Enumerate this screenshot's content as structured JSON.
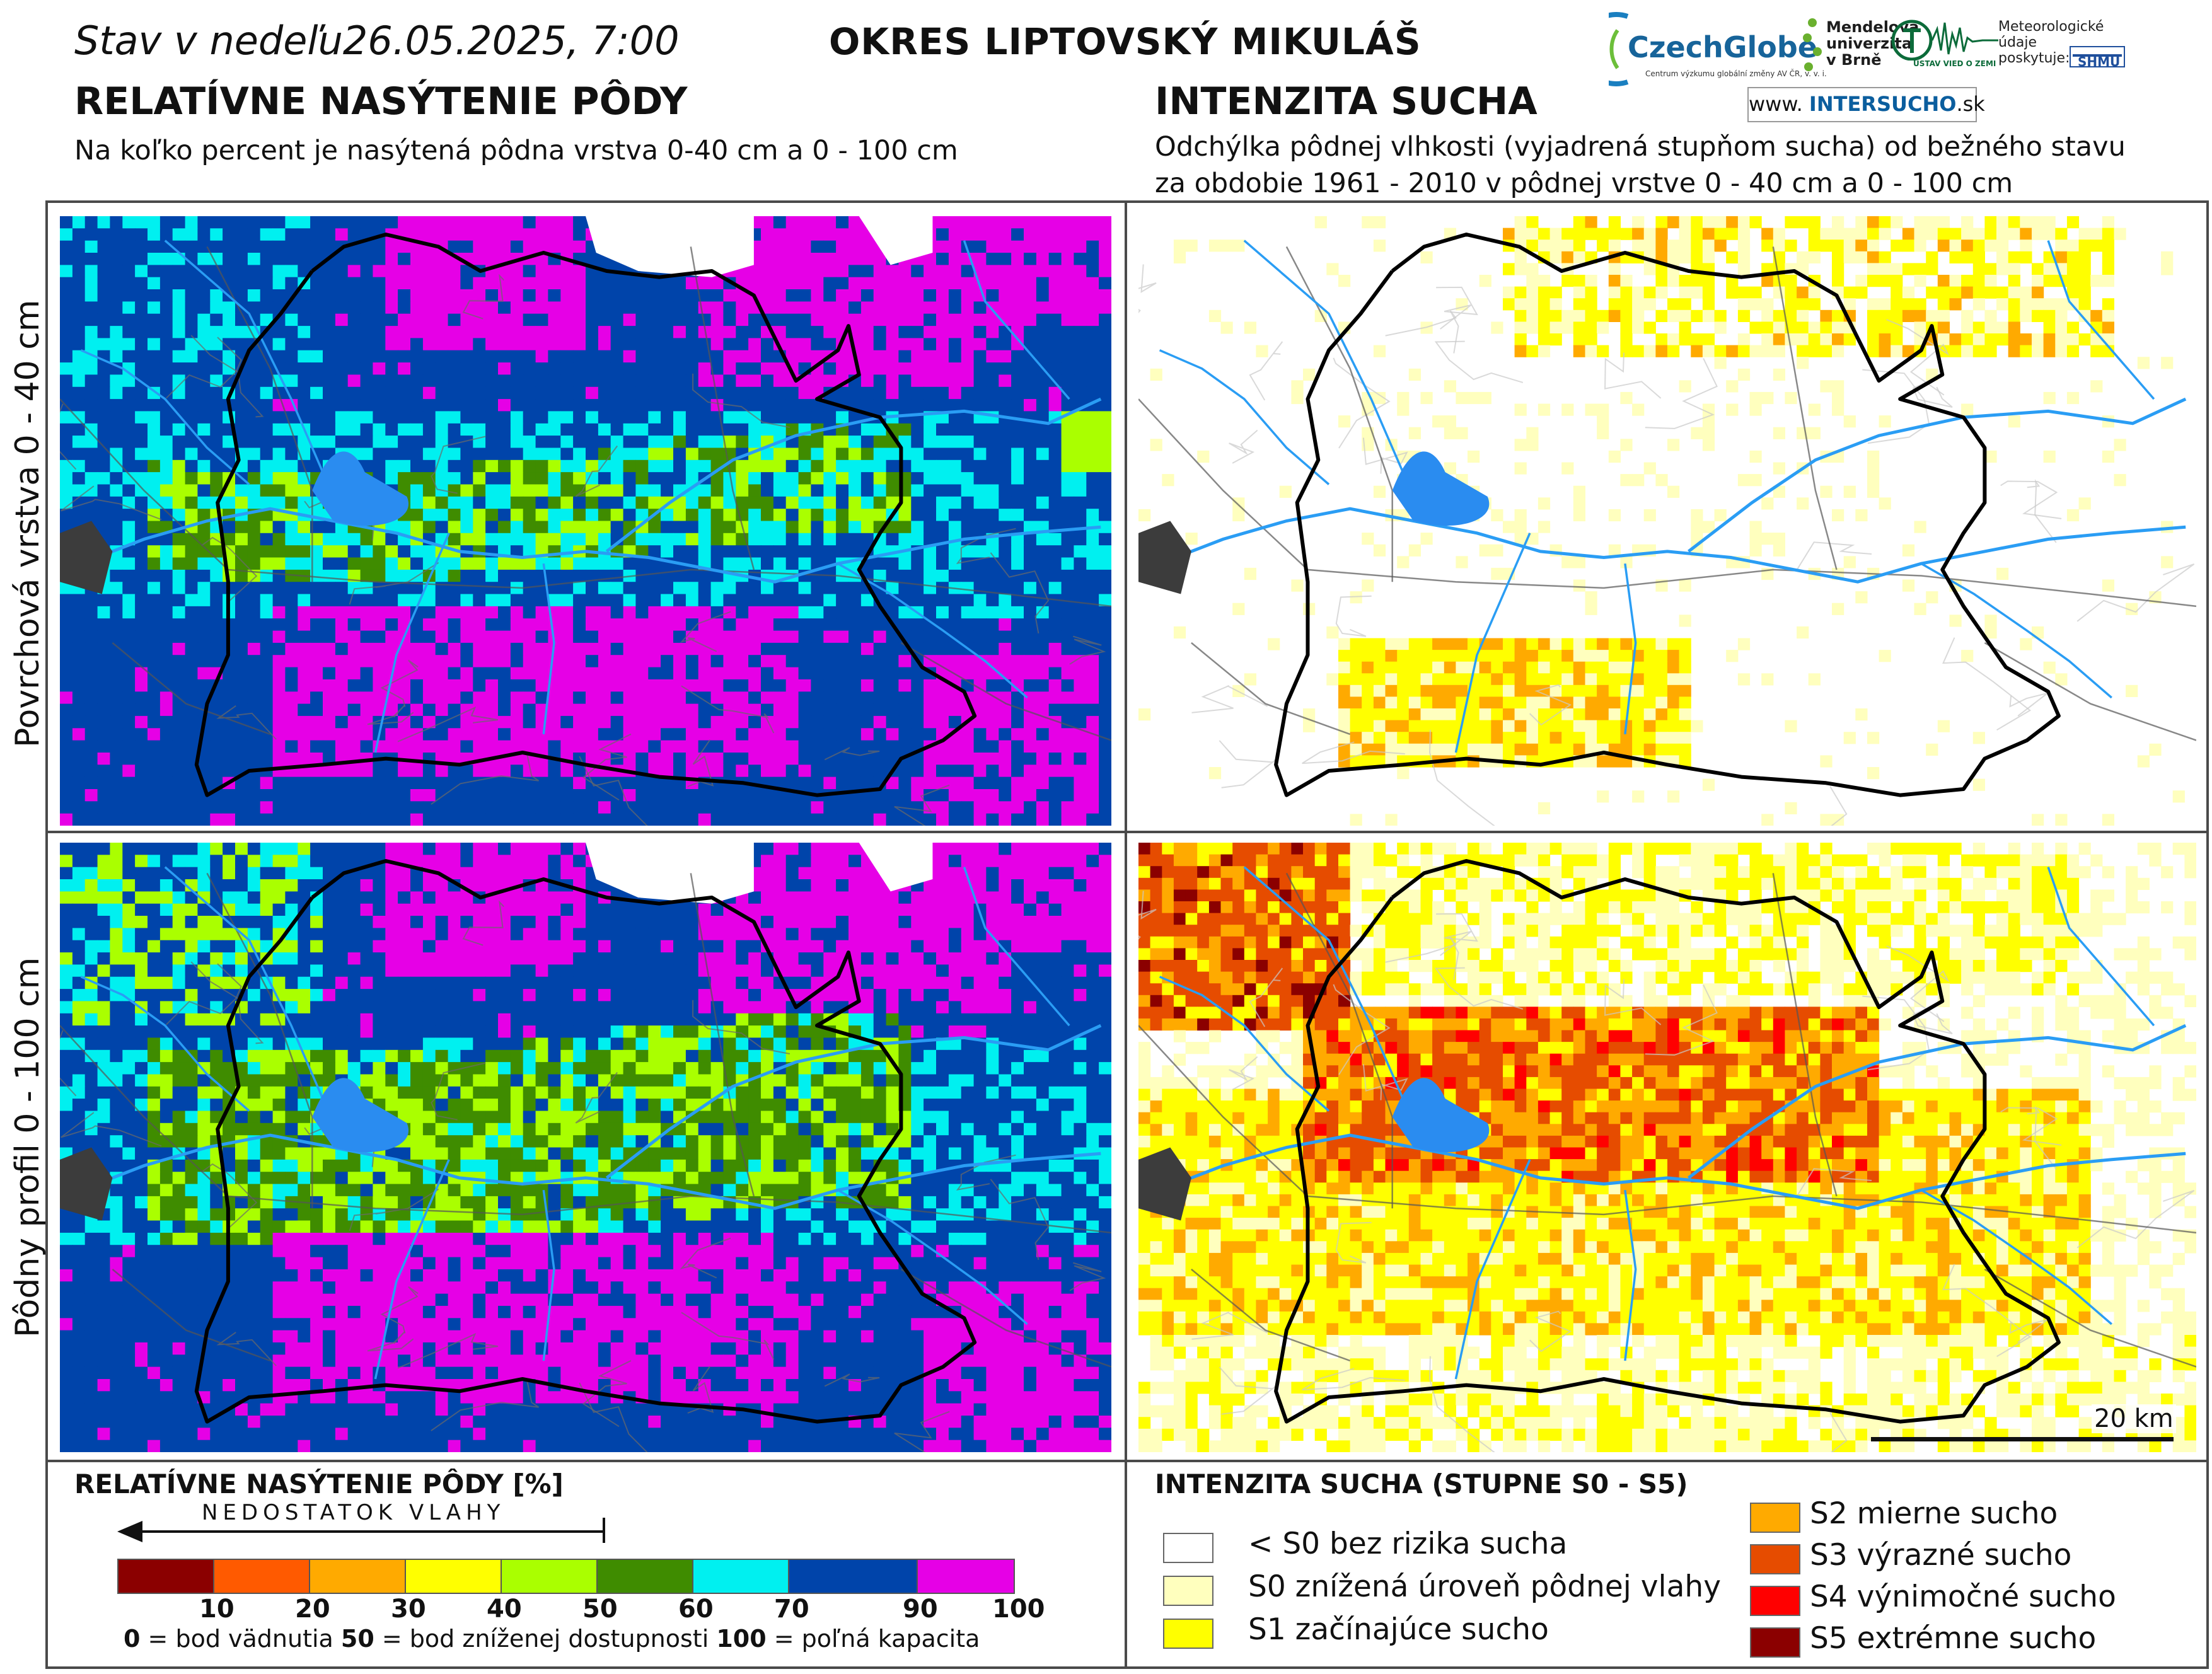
{
  "header": {
    "date_line": "Stav v nedeľu26.05.2025, 7:00",
    "district": "OKRES  LIPTOVSKÝ MIKULÁŠ"
  },
  "left_section": {
    "title": "RELATÍVNE NASÝTENIE PÔDY",
    "subtitle": "Na koľko percent je nasýtená pôdna vrstva 0-40 cm a 0 - 100 cm"
  },
  "right_section": {
    "title": "INTENZITA SUCHA",
    "subtitle_line1": "Odchýlka pôdnej vlhkosti (vyjadrená stupňom sucha) od bežného stavu",
    "subtitle_line2": "za obdobie 1961 - 2010 v pôdnej vrstve 0 - 40 cm a 0 - 100 cm"
  },
  "logos": {
    "czechglobe": "CzechGlobe",
    "czechglobe_sub": "Centrum výzkumu globální změny AV ČR, v. v. i.",
    "mendelu": [
      "Mendelova",
      "univerzita",
      "v Brně"
    ],
    "uvgz": "ÚSTAV VIED O ZEMI",
    "meteo": [
      "Meteorologické",
      "údaje",
      "poskytuje:"
    ],
    "shmu": "SHMÚ",
    "web_prefix": "www.",
    "web_main": "INTERSUCHO",
    "web_suffix": ".sk"
  },
  "row_labels": {
    "top": "Povrchová vrstva 0 - 40 cm",
    "bottom": "Pôdny profil 0 - 100 cm"
  },
  "saturation_legend": {
    "title": "RELATÍVNE NASÝTENIE PÔDY [%]",
    "deficit_label": "NEDOSTATOK VLAHY",
    "classes": [
      {
        "upper": 10,
        "color": "#8b0000"
      },
      {
        "upper": 20,
        "color": "#ff5a00"
      },
      {
        "upper": 30,
        "color": "#ffaa00"
      },
      {
        "upper": 40,
        "color": "#ffff00"
      },
      {
        "upper": 50,
        "color": "#aaff00"
      },
      {
        "upper": 60,
        "color": "#3f8c00"
      },
      {
        "upper": 70,
        "color": "#00f0f0"
      },
      {
        "upper": 90,
        "color": "#0044aa"
      },
      {
        "upper": 100,
        "color": "#e600e6"
      }
    ],
    "notes": [
      {
        "value": "0",
        "text": " = bod vädnutia   "
      },
      {
        "value": "50",
        "text": " = bod zníženej dostupnosti   "
      },
      {
        "value": "100",
        "text": " = poľná kapacita"
      }
    ]
  },
  "drought_legend": {
    "title": "INTENZITA SUCHA (STUPNE S0 - S5)",
    "classes": [
      {
        "label": "< S0 bez rizika sucha",
        "color": "#ffffff"
      },
      {
        "label": "S0 znížená úroveň pôdnej vlahy",
        "color": "#ffffbe"
      },
      {
        "label": "S1 začínajúce sucho",
        "color": "#ffff00"
      },
      {
        "label": "S2 mierne sucho",
        "color": "#ffaa00"
      },
      {
        "label": "S3 výrazné sucho",
        "color": "#e64c00"
      },
      {
        "label": "S4 výnimočné sucho",
        "color": "#ff0000"
      },
      {
        "label": "S5 extrémne sucho",
        "color": "#8b0000"
      }
    ]
  },
  "scale_bar": "20 km",
  "colors": {
    "district_border": "#000000",
    "river": "#2a9df4",
    "reservoir": "#2a8cf0",
    "frame": "#4a4a4a"
  }
}
